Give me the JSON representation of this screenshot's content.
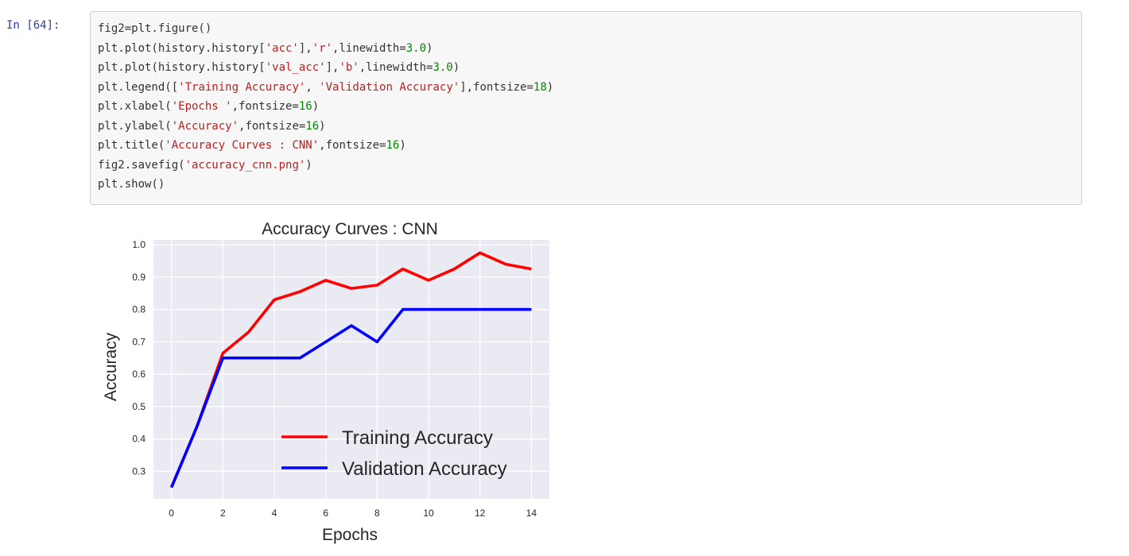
{
  "cell": {
    "prompt": "In [64]:",
    "code_lines": [
      [
        {
          "t": "fig2=plt.figure()",
          "c": "plain"
        }
      ],
      [
        {
          "t": "plt.plot(history.history[",
          "c": "plain"
        },
        {
          "t": "'acc'",
          "c": "str"
        },
        {
          "t": "],",
          "c": "plain"
        },
        {
          "t": "'r'",
          "c": "str"
        },
        {
          "t": ",linewidth=",
          "c": "plain"
        },
        {
          "t": "3.0",
          "c": "num"
        },
        {
          "t": ")",
          "c": "plain"
        }
      ],
      [
        {
          "t": "plt.plot(history.history[",
          "c": "plain"
        },
        {
          "t": "'val_acc'",
          "c": "str"
        },
        {
          "t": "],",
          "c": "plain"
        },
        {
          "t": "'b'",
          "c": "str"
        },
        {
          "t": ",linewidth=",
          "c": "plain"
        },
        {
          "t": "3.0",
          "c": "num"
        },
        {
          "t": ")",
          "c": "plain"
        }
      ],
      [
        {
          "t": "plt.legend([",
          "c": "plain"
        },
        {
          "t": "'Training Accuracy'",
          "c": "str"
        },
        {
          "t": ", ",
          "c": "plain"
        },
        {
          "t": "'Validation Accuracy'",
          "c": "str"
        },
        {
          "t": "],fontsize=",
          "c": "plain"
        },
        {
          "t": "18",
          "c": "num"
        },
        {
          "t": ")",
          "c": "plain"
        }
      ],
      [
        {
          "t": "plt.xlabel(",
          "c": "plain"
        },
        {
          "t": "'Epochs '",
          "c": "str"
        },
        {
          "t": ",fontsize=",
          "c": "plain"
        },
        {
          "t": "16",
          "c": "num"
        },
        {
          "t": ")",
          "c": "plain"
        }
      ],
      [
        {
          "t": "plt.ylabel(",
          "c": "plain"
        },
        {
          "t": "'Accuracy'",
          "c": "str"
        },
        {
          "t": ",fontsize=",
          "c": "plain"
        },
        {
          "t": "16",
          "c": "num"
        },
        {
          "t": ")",
          "c": "plain"
        }
      ],
      [
        {
          "t": "plt.title(",
          "c": "plain"
        },
        {
          "t": "'Accuracy Curves : CNN'",
          "c": "str"
        },
        {
          "t": ",fontsize=",
          "c": "plain"
        },
        {
          "t": "16",
          "c": "num"
        },
        {
          "t": ")",
          "c": "plain"
        }
      ],
      [
        {
          "t": "fig2.savefig(",
          "c": "plain"
        },
        {
          "t": "'accuracy_cnn.png'",
          "c": "str"
        },
        {
          "t": ")",
          "c": "plain"
        }
      ],
      [
        {
          "t": "plt.show()",
          "c": "plain"
        }
      ]
    ]
  },
  "chart_data": {
    "type": "line",
    "title": "Accuracy Curves : CNN",
    "xlabel": "Epochs",
    "ylabel": "Accuracy",
    "x": [
      0,
      1,
      2,
      3,
      4,
      5,
      6,
      7,
      8,
      9,
      10,
      11,
      12,
      13,
      14
    ],
    "xticks": [
      "0",
      "2",
      "4",
      "6",
      "8",
      "10",
      "12",
      "14"
    ],
    "yticks": [
      "0.3",
      "0.4",
      "0.5",
      "0.6",
      "0.7",
      "0.8",
      "0.9",
      "1.0"
    ],
    "xlim": [
      -0.7,
      14.7
    ],
    "ylim": [
      0.215,
      1.015
    ],
    "grid": true,
    "legend_position": "lower-right",
    "series": [
      {
        "name": "Training Accuracy",
        "color": "#ff0000",
        "values": [
          0.25,
          0.44,
          0.665,
          0.73,
          0.83,
          0.855,
          0.89,
          0.865,
          0.875,
          0.925,
          0.89,
          0.925,
          0.975,
          0.94,
          0.925
        ]
      },
      {
        "name": "Validation Accuracy",
        "color": "#0000ff",
        "values": [
          0.25,
          0.44,
          0.65,
          0.65,
          0.65,
          0.65,
          0.7,
          0.75,
          0.7,
          0.8,
          0.8,
          0.8,
          0.8,
          0.8,
          0.8
        ]
      }
    ]
  }
}
